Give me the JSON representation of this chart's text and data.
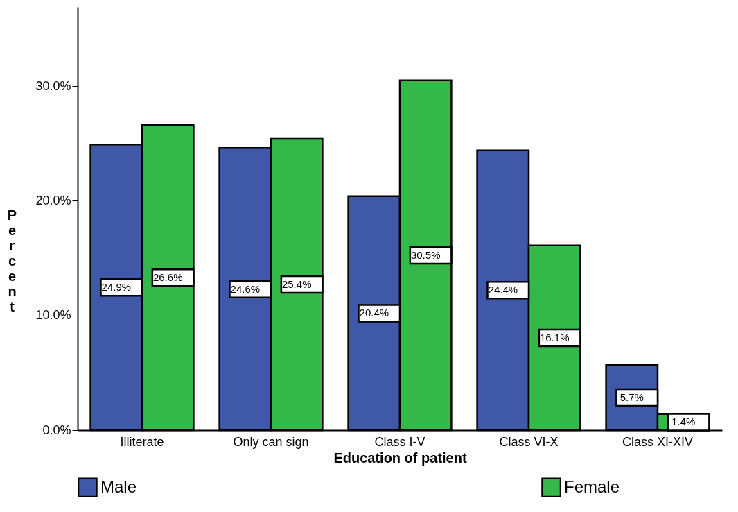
{
  "chart_data": {
    "type": "bar",
    "xlabel": "Education of patient",
    "ylabel": "Percent",
    "categories": [
      "Illiterate",
      "Only can sign",
      "Class I-V",
      "Class VI-X",
      "Class XI-XIV"
    ],
    "series": [
      {
        "name": "Male",
        "color": "#3f59a8",
        "values": [
          24.9,
          24.6,
          20.4,
          24.4,
          5.7
        ],
        "value_labels": [
          "24.9%",
          "24.6%",
          "20.4%",
          "24.4%",
          "5.7%"
        ]
      },
      {
        "name": "Female",
        "color": "#34b84a",
        "values": [
          26.6,
          25.4,
          30.5,
          16.1,
          1.4
        ],
        "value_labels": [
          "26.6%",
          "25.4%",
          "30.5%",
          "16.1%",
          "1.4%"
        ]
      }
    ],
    "ylim": [
      0,
      36.9
    ],
    "yticks": [
      {
        "value": 0,
        "label": "0.0%"
      },
      {
        "value": 10,
        "label": "10.0%"
      },
      {
        "value": 20,
        "label": "20.0%"
      },
      {
        "value": 30,
        "label": "30.0%"
      }
    ],
    "grid": false,
    "legend": "bottom"
  }
}
